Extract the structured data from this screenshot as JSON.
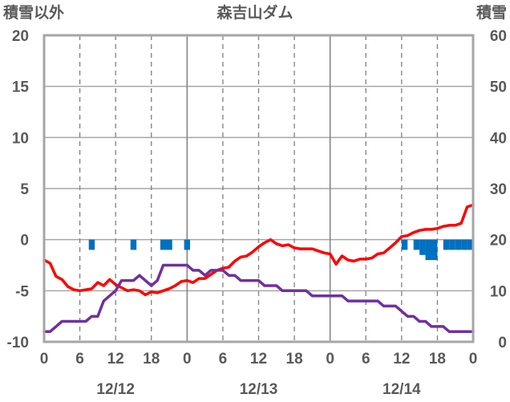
{
  "chart_data": {
    "type": "line",
    "title": "森吉山ダム",
    "y_left": {
      "label": "積雪以外",
      "ticks": [
        "20",
        "15",
        "10",
        "5",
        "0",
        "-5",
        "-10"
      ],
      "ylim": [
        -10,
        20
      ]
    },
    "y_right": {
      "label": "積雪",
      "ticks": [
        "60",
        "50",
        "40",
        "30",
        "20",
        "10",
        "0"
      ],
      "ylim": [
        0,
        60
      ]
    },
    "x_hour_ticks": [
      "0",
      "6",
      "12",
      "18",
      "0",
      "6",
      "12",
      "18",
      "0",
      "6",
      "12",
      "18",
      "0"
    ],
    "x_date_labels": [
      "12/12",
      "12/13",
      "12/14"
    ],
    "grid": true,
    "series": [
      {
        "color": "#ff0000",
        "axis": "left",
        "x": [
          0,
          1,
          2,
          3,
          4,
          5,
          6,
          7,
          8,
          9,
          10,
          11,
          12,
          13,
          14,
          15,
          16,
          17,
          18,
          19,
          20,
          21,
          22,
          23,
          24,
          25,
          26,
          27,
          28,
          29,
          30,
          31,
          32,
          33,
          34,
          35,
          36,
          37,
          38,
          39,
          40,
          41,
          42,
          43,
          44,
          45,
          46,
          47,
          48,
          49,
          50,
          51,
          52,
          53,
          54,
          55,
          56,
          57,
          58,
          59,
          60,
          61,
          62,
          63,
          64,
          65,
          66,
          67,
          68,
          69,
          70,
          71,
          72
        ],
        "values": [
          -2,
          -2.3,
          -3.6,
          -3.9,
          -4.6,
          -4.9,
          -5,
          -4.9,
          -4.8,
          -4.2,
          -4.5,
          -3.9,
          -4.4,
          -4.7,
          -5,
          -4.9,
          -5,
          -5.4,
          -5.1,
          -5.2,
          -5,
          -4.8,
          -4.5,
          -4.1,
          -4,
          -4.2,
          -3.8,
          -3.8,
          -3.4,
          -3,
          -2.8,
          -2.7,
          -2.1,
          -1.7,
          -1.6,
          -1.2,
          -0.7,
          -0.3,
          0,
          -0.4,
          -0.6,
          -0.5,
          -0.8,
          -0.9,
          -0.9,
          -0.9,
          -1.1,
          -1.3,
          -1.4,
          -2.4,
          -1.6,
          -2,
          -2.1,
          -1.9,
          -1.9,
          -1.8,
          -1.4,
          -1.3,
          -0.8,
          -0.3,
          0.3,
          0.4,
          0.7,
          0.9,
          1,
          1,
          1.1,
          1.3,
          1.4,
          1.4,
          1.6,
          3.2,
          3.4
        ]
      },
      {
        "color": "#7030a0",
        "axis": "left",
        "x": [
          0,
          1,
          2,
          3,
          4,
          5,
          6,
          7,
          8,
          9,
          10,
          11,
          12,
          13,
          14,
          15,
          16,
          17,
          18,
          19,
          20,
          21,
          22,
          23,
          24,
          25,
          26,
          27,
          28,
          29,
          30,
          31,
          32,
          33,
          34,
          35,
          36,
          37,
          38,
          39,
          40,
          41,
          42,
          43,
          44,
          45,
          46,
          47,
          48,
          49,
          50,
          51,
          52,
          53,
          54,
          55,
          56,
          57,
          58,
          59,
          60,
          61,
          62,
          63,
          64,
          65,
          66,
          67,
          68,
          69,
          70,
          71,
          72
        ],
        "values": [
          -9,
          -9,
          -8.5,
          -8,
          -8,
          -8,
          -8,
          -8,
          -7.5,
          -7.5,
          -6,
          -5.5,
          -5,
          -4,
          -4,
          -4,
          -3.5,
          -4,
          -4.5,
          -4,
          -2.5,
          -2.5,
          -2.5,
          -2.5,
          -2.5,
          -3,
          -3,
          -3.5,
          -3,
          -3,
          -3,
          -3.5,
          -3.5,
          -4,
          -4,
          -4,
          -4,
          -4.5,
          -4.5,
          -4.5,
          -5,
          -5,
          -5,
          -5,
          -5,
          -5.5,
          -5.5,
          -5.5,
          -5.5,
          -5.5,
          -5.5,
          -6,
          -6,
          -6,
          -6,
          -6,
          -6,
          -6.5,
          -6.5,
          -6.5,
          -7,
          -7.5,
          -7.5,
          -8,
          -8,
          -8.5,
          -8.5,
          -8.5,
          -9,
          -9,
          -9,
          -9,
          -9
        ]
      },
      {
        "color": "#0070c0",
        "axis": "left",
        "kind": "bar",
        "x_start": [
          7.5,
          14.5,
          19.5,
          23.5,
          60,
          62,
          63,
          64,
          67,
          68,
          69,
          70,
          71
        ],
        "x_end": [
          8.5,
          15.5,
          21.5,
          24.5,
          61,
          63,
          64,
          66,
          68,
          69,
          70,
          71,
          72
        ],
        "values": [
          -1,
          -1,
          -1,
          -1,
          -1,
          -1,
          -1.5,
          -2,
          -1,
          -1,
          -1,
          -1,
          -1
        ]
      }
    ]
  }
}
